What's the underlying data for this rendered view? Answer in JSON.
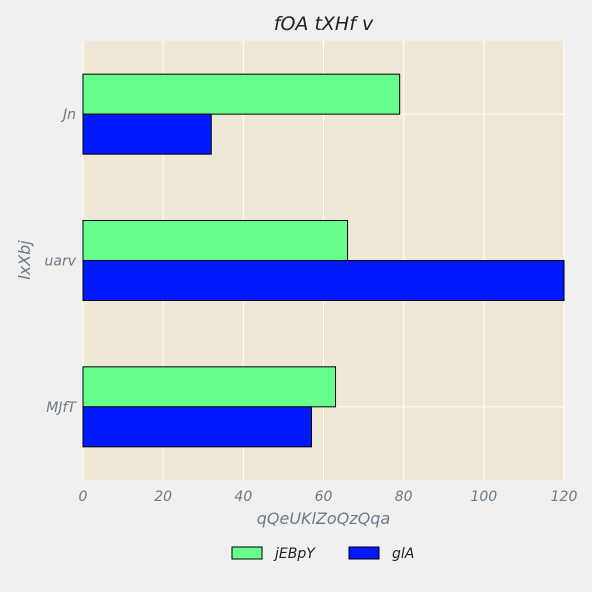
{
  "chart_data": {
    "type": "bar",
    "orientation": "horizontal",
    "title": "fOA  tXHf v",
    "xlabel": "qQeUKlZoQzQqa",
    "ylabel": "lxXbj",
    "categories": [
      "Jn",
      "uarv",
      "MJfT"
    ],
    "series": [
      {
        "name": "jEBpY",
        "color": "#66ff8c",
        "values": [
          79,
          66,
          63
        ]
      },
      {
        "name": "glA",
        "color": "#0019ff",
        "values": [
          32,
          120,
          57
        ]
      }
    ],
    "xlim": [
      0,
      120
    ],
    "xticks": [
      "0",
      "20",
      "40",
      "60",
      "80",
      "100",
      "120"
    ],
    "grid": true,
    "legend_position": "bottom-center",
    "plot_background": "#efe8d6",
    "figure_background": "#f0f0f0"
  }
}
